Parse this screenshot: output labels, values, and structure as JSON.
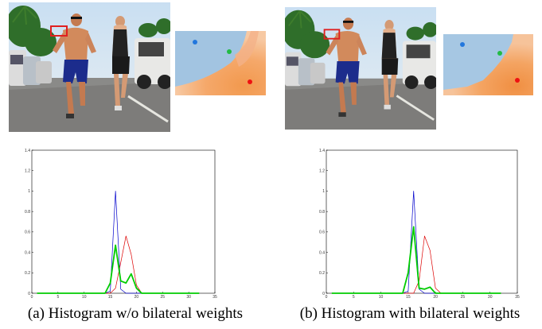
{
  "figure": {
    "panels": [
      {
        "id": "a",
        "caption": "(a) Histogram w/o bilateral weights",
        "chart_data": {
          "type": "line",
          "title": "",
          "xlabel": "",
          "ylabel": "",
          "xlim": [
            0,
            35
          ],
          "ylim": [
            0,
            1.4
          ],
          "xticks": [
            0,
            5,
            10,
            15,
            20,
            25,
            30,
            35
          ],
          "yticks": [
            0,
            0.2,
            0.4,
            0.6,
            0.8,
            1,
            1.2,
            1.4
          ],
          "xtick_labels": [
            "0",
            "5",
            "10",
            "15",
            "20",
            "25",
            "30",
            "35"
          ],
          "ytick_labels": [
            "0",
            "0.2",
            "0.4",
            "0.6",
            "0.8",
            "1",
            "1.2",
            "1.4"
          ],
          "series": [
            {
              "color": "#0000cc",
              "width": 0.7,
              "x": [
                1,
                14,
                15,
                16,
                17,
                18,
                32
              ],
              "y": [
                0,
                0,
                0.02,
                1.0,
                0.04,
                0,
                0
              ]
            },
            {
              "color": "#dd0000",
              "width": 0.7,
              "x": [
                1,
                15,
                16,
                17,
                18,
                19,
                20,
                21,
                32
              ],
              "y": [
                0,
                0,
                0.05,
                0.3,
                0.56,
                0.38,
                0.08,
                0,
                0
              ]
            },
            {
              "color": "#00cc00",
              "width": 1.8,
              "x": [
                1,
                14,
                15,
                16,
                17,
                18,
                19,
                20,
                21,
                32
              ],
              "y": [
                0,
                0,
                0.1,
                0.47,
                0.12,
                0.1,
                0.19,
                0.05,
                0,
                0
              ]
            }
          ]
        }
      },
      {
        "id": "b",
        "caption": "(b) Histogram with bilateral weights",
        "chart_data": {
          "type": "line",
          "title": "",
          "xlabel": "",
          "ylabel": "",
          "xlim": [
            0,
            35
          ],
          "ylim": [
            0,
            1.4
          ],
          "xticks": [
            0,
            5,
            10,
            15,
            20,
            25,
            30,
            35
          ],
          "yticks": [
            0,
            0.2,
            0.4,
            0.6,
            0.8,
            1,
            1.2,
            1.4
          ],
          "xtick_labels": [
            "0",
            "5",
            "10",
            "15",
            "20",
            "25",
            "30",
            "35"
          ],
          "ytick_labels": [
            "0",
            "0.2",
            "0.4",
            "0.6",
            "0.8",
            "1",
            "1.2",
            "1.4"
          ],
          "series": [
            {
              "color": "#0000cc",
              "width": 0.7,
              "x": [
                1,
                14,
                15,
                16,
                17,
                18,
                32
              ],
              "y": [
                0,
                0,
                0.02,
                1.0,
                0.04,
                0,
                0
              ]
            },
            {
              "color": "#dd0000",
              "width": 0.7,
              "x": [
                1,
                16,
                17,
                18,
                19,
                20,
                21,
                32
              ],
              "y": [
                0,
                0,
                0.12,
                0.56,
                0.42,
                0.05,
                0,
                0
              ]
            },
            {
              "color": "#00cc00",
              "width": 1.8,
              "x": [
                1,
                14,
                15,
                16,
                17,
                18,
                19,
                20,
                32
              ],
              "y": [
                0,
                0,
                0.2,
                0.65,
                0.05,
                0.04,
                0.06,
                0,
                0
              ]
            }
          ]
        }
      }
    ],
    "marker_colors": {
      "selection_box": "#e02020",
      "blue_dot": "#2277dd",
      "green_dot": "#22bb44",
      "red_dot": "#ee1111"
    }
  }
}
